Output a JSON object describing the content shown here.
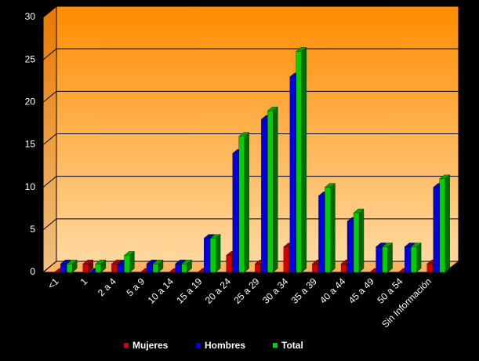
{
  "chart_data": {
    "type": "bar",
    "categories": [
      "<1",
      "1",
      "2 a 4",
      "5 a 9",
      "10 a 14",
      "15 a 19",
      "20 a 24",
      "25 a 29",
      "30 a 34",
      "35 a 39",
      "40 a 44",
      "45 a 49",
      "50 a 54",
      "Sin Información"
    ],
    "series": [
      {
        "name": "Mujeres",
        "color": "#d00000",
        "values": [
          0,
          1,
          1,
          0,
          0,
          0,
          2,
          1,
          3,
          1,
          1,
          0,
          0,
          1
        ]
      },
      {
        "name": "Hombres",
        "color": "#0000e8",
        "values": [
          1,
          0,
          1,
          1,
          1,
          4,
          14,
          18,
          23,
          9,
          6,
          3,
          3,
          10
        ]
      },
      {
        "name": "Total",
        "color": "#00d000",
        "values": [
          1,
          1,
          2,
          1,
          1,
          4,
          16,
          19,
          26,
          10,
          7,
          3,
          3,
          11
        ]
      }
    ],
    "ylim": [
      0,
      30
    ],
    "yticks": [
      0,
      5,
      10,
      15,
      20,
      25,
      30
    ],
    "grid": true,
    "legend": "bottom"
  }
}
